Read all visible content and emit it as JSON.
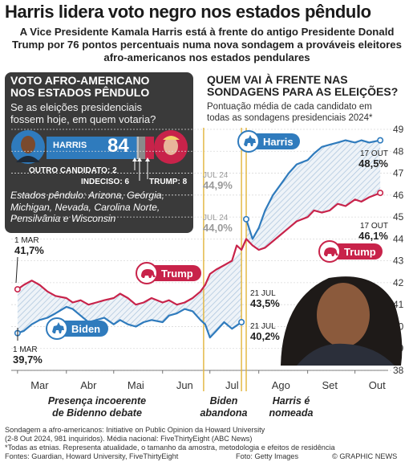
{
  "headline": "Harris lidera voto negro nos estados pêndulo",
  "standfirst": "A Vice Presidente Kamala Harris está à frente do antigo Presidente Donald Trump por 76 pontos percentuais numa nova sondagem a prováveis eleitores afro-americanos nos estados pendulares",
  "panel": {
    "title_line1": "VOTO AFRO-AMERICANO",
    "title_line2": "NOS ESTADOS PÊNDULO",
    "question_line1": "Se as eleições presidenciais",
    "question_line2": "fossem hoje, em quem votaria?",
    "harris_label": "HARRIS",
    "harris_value": "84",
    "other_label": "OUTRO CANDIDATO: 2",
    "undecided_label": "INDECISO: 6",
    "trump_label": "TRUMP: 8",
    "states_line1": "Estados pêndulo: Arizona, Geórgia,",
    "states_line2": "Michigan, Nevada, Carolina Norte,",
    "states_line3": "Pensilvânia e Wisconsin",
    "bar_shares": {
      "harris": 84,
      "other": 2,
      "undecided": 6,
      "trump": 8
    }
  },
  "right": {
    "title_line1": "QUEM VAI À FRENTE NAS",
    "title_line2": "SONDAGENS PARA AS ELEIÇÕES?",
    "sub_line1": "Pontuação média de cada candidato em",
    "sub_line2": "todas as sondagens presidenciais 2024*"
  },
  "chart_data": {
    "type": "line",
    "x_axis_months": [
      "Mar",
      "Abr",
      "Mai",
      "Jun",
      "Jul",
      "Ago",
      "Set",
      "Out"
    ],
    "y_ticks": [
      38,
      39,
      40,
      41,
      42,
      43,
      44,
      45,
      46,
      47,
      48,
      49
    ],
    "ylim": [
      38,
      49
    ],
    "xlim": [
      "2024-02-26",
      "2024-10-22"
    ],
    "series": [
      {
        "name": "Biden",
        "color": "#2f7bbd",
        "points": [
          [
            "2024-03-01",
            39.7
          ],
          [
            "2024-03-05",
            39.8
          ],
          [
            "2024-03-10",
            40.1
          ],
          [
            "2024-03-15",
            40.3
          ],
          [
            "2024-03-20",
            40.4
          ],
          [
            "2024-03-25",
            40.6
          ],
          [
            "2024-04-01",
            40.9
          ],
          [
            "2024-04-05",
            40.8
          ],
          [
            "2024-04-10",
            40.5
          ],
          [
            "2024-04-15",
            40.2
          ],
          [
            "2024-04-20",
            40.3
          ],
          [
            "2024-04-25",
            40.4
          ],
          [
            "2024-05-01",
            40.1
          ],
          [
            "2024-05-05",
            40.3
          ],
          [
            "2024-05-10",
            40.1
          ],
          [
            "2024-05-15",
            40.0
          ],
          [
            "2024-05-20",
            40.2
          ],
          [
            "2024-05-25",
            40.3
          ],
          [
            "2024-06-01",
            40.2
          ],
          [
            "2024-06-05",
            40.5
          ],
          [
            "2024-06-10",
            40.6
          ],
          [
            "2024-06-15",
            40.8
          ],
          [
            "2024-06-20",
            40.7
          ],
          [
            "2024-06-25",
            40.3
          ],
          [
            "2024-06-28",
            40.1
          ],
          [
            "2024-07-01",
            39.5
          ],
          [
            "2024-07-05",
            39.8
          ],
          [
            "2024-07-10",
            40.2
          ],
          [
            "2024-07-15",
            39.9
          ],
          [
            "2024-07-21",
            40.2
          ]
        ]
      },
      {
        "name": "Trump",
        "color": "#c8234a",
        "points": [
          [
            "2024-03-01",
            41.7
          ],
          [
            "2024-03-05",
            41.9
          ],
          [
            "2024-03-10",
            42.1
          ],
          [
            "2024-03-15",
            41.9
          ],
          [
            "2024-03-20",
            41.6
          ],
          [
            "2024-03-25",
            41.4
          ],
          [
            "2024-04-01",
            41.3
          ],
          [
            "2024-04-05",
            41.1
          ],
          [
            "2024-04-10",
            41.2
          ],
          [
            "2024-04-15",
            41.0
          ],
          [
            "2024-04-20",
            41.1
          ],
          [
            "2024-04-25",
            41.2
          ],
          [
            "2024-05-01",
            41.3
          ],
          [
            "2024-05-05",
            41.5
          ],
          [
            "2024-05-10",
            41.3
          ],
          [
            "2024-05-15",
            41.0
          ],
          [
            "2024-05-20",
            41.1
          ],
          [
            "2024-05-25",
            41.3
          ],
          [
            "2024-06-01",
            41.1
          ],
          [
            "2024-06-05",
            41.2
          ],
          [
            "2024-06-10",
            41.0
          ],
          [
            "2024-06-15",
            41.1
          ],
          [
            "2024-06-20",
            41.3
          ],
          [
            "2024-06-25",
            41.6
          ],
          [
            "2024-06-28",
            41.9
          ],
          [
            "2024-07-01",
            42.4
          ],
          [
            "2024-07-05",
            42.6
          ],
          [
            "2024-07-10",
            42.8
          ],
          [
            "2024-07-15",
            43.0
          ],
          [
            "2024-07-18",
            43.7
          ],
          [
            "2024-07-21",
            43.5
          ],
          [
            "2024-07-24",
            44.0
          ],
          [
            "2024-07-28",
            43.7
          ],
          [
            "2024-08-01",
            43.5
          ],
          [
            "2024-08-05",
            43.6
          ],
          [
            "2024-08-10",
            43.9
          ],
          [
            "2024-08-15",
            44.2
          ],
          [
            "2024-08-20",
            44.5
          ],
          [
            "2024-08-25",
            44.8
          ],
          [
            "2024-09-01",
            45.0
          ],
          [
            "2024-09-05",
            45.3
          ],
          [
            "2024-09-10",
            45.2
          ],
          [
            "2024-09-15",
            45.3
          ],
          [
            "2024-09-20",
            45.6
          ],
          [
            "2024-09-25",
            45.5
          ],
          [
            "2024-10-01",
            45.8
          ],
          [
            "2024-10-05",
            45.7
          ],
          [
            "2024-10-10",
            45.9
          ],
          [
            "2024-10-17",
            46.1
          ]
        ]
      },
      {
        "name": "Harris",
        "color": "#2f7bbd",
        "points": [
          [
            "2024-07-24",
            44.9
          ],
          [
            "2024-07-28",
            44.0
          ],
          [
            "2024-08-01",
            44.5
          ],
          [
            "2024-08-05",
            45.3
          ],
          [
            "2024-08-10",
            46.0
          ],
          [
            "2024-08-15",
            46.5
          ],
          [
            "2024-08-20",
            47.0
          ],
          [
            "2024-08-25",
            47.4
          ],
          [
            "2024-09-01",
            47.6
          ],
          [
            "2024-09-05",
            47.9
          ],
          [
            "2024-09-10",
            48.2
          ],
          [
            "2024-09-15",
            48.3
          ],
          [
            "2024-09-20",
            48.4
          ],
          [
            "2024-09-25",
            48.5
          ],
          [
            "2024-10-01",
            48.4
          ],
          [
            "2024-10-05",
            48.5
          ],
          [
            "2024-10-10",
            48.4
          ],
          [
            "2024-10-17",
            48.5
          ]
        ]
      }
    ],
    "labels": [
      {
        "text": "1 MAR",
        "value": "41,7%"
      },
      {
        "text": "1 MAR",
        "value": "39,7%"
      },
      {
        "text": "JUL 24",
        "value": "44,9%"
      },
      {
        "text": "JUL 24",
        "value": "44,0%"
      },
      {
        "text": "21 JUL",
        "value": "43,5%"
      },
      {
        "text": "21 JUL",
        "value": "40,2%"
      },
      {
        "text": "17 OUT",
        "value": "48,5%"
      },
      {
        "text": "17 OUT",
        "value": "46,1%"
      }
    ],
    "series_tags": [
      "Harris",
      "Trump",
      "Biden",
      "Trump"
    ],
    "events": [
      {
        "date": "2024-06-27",
        "line1": "Presença incoerente",
        "line2": "de Bidenno debate"
      },
      {
        "date": "2024-07-21",
        "line1": "Biden",
        "line2": "abandona"
      },
      {
        "date": "2024-07-24",
        "line1": "Harris é",
        "line2": "nomeada"
      }
    ]
  },
  "footnotes": {
    "line1": "Sondagem a afro-americanos: Initiative on Public Opinion da Howard University",
    "line2": "(2-8 Out 2024, 981 inquiridos). Média nacional: FiveThirtyEight (ABC News)",
    "line3": "*Todas as etnias. Representa atualidade, o tamanho da amostra, metodologia e efeitos de residência",
    "line4": "Fontes: Guardian, Howard University, FiveThirtyEight",
    "photo": "Foto: Getty Images",
    "brand": "© GRAPHIC NEWS"
  },
  "colors": {
    "harris_blue": "#2f7bbd",
    "trump_red": "#c8234a",
    "panel_bg": "#3a3a3a",
    "event_line": "#e2b43a"
  }
}
